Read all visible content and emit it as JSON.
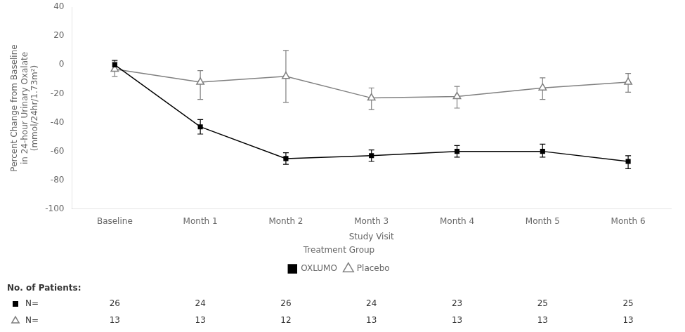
{
  "chart_data": {
    "type": "line",
    "categories": [
      "Baseline",
      "Month 1",
      "Month 2",
      "Month 3",
      "Month 4",
      "Month 5",
      "Month 6"
    ],
    "series": [
      {
        "name": "OXLUMO",
        "color": "#000000",
        "marker": "square",
        "values": [
          0,
          -43,
          -65,
          -63,
          -60,
          -60,
          -67
        ],
        "error_low": [
          3,
          5,
          4,
          4,
          4,
          4,
          5
        ],
        "error_high": [
          3,
          5,
          4,
          4,
          4,
          5,
          4
        ],
        "n": [
          26,
          24,
          26,
          24,
          23,
          25,
          25
        ]
      },
      {
        "name": "Placebo",
        "color": "#808080",
        "marker": "triangle",
        "values": [
          -3,
          -12,
          -8,
          -23,
          -22,
          -16,
          -12
        ],
        "error_low": [
          5,
          12,
          18,
          8,
          8,
          8,
          7
        ],
        "error_high": [
          5,
          8,
          18,
          7,
          7,
          7,
          6
        ],
        "n": [
          13,
          13,
          12,
          13,
          13,
          13,
          13
        ]
      }
    ],
    "ylabel": "Percent Change from Baseline\nin 24-hour Urinary Oxalate\n(mmol/24hr/1.73m²)",
    "xlabel": "Study Visit",
    "ylim": [
      -100,
      40
    ],
    "yticks": [
      -100,
      -80,
      -60,
      -40,
      -20,
      0,
      20,
      40
    ],
    "grid": false,
    "legend": "bottom",
    "legend_title": "Treatment Group",
    "table_title": "No. of Patients:",
    "n_label": "N="
  }
}
